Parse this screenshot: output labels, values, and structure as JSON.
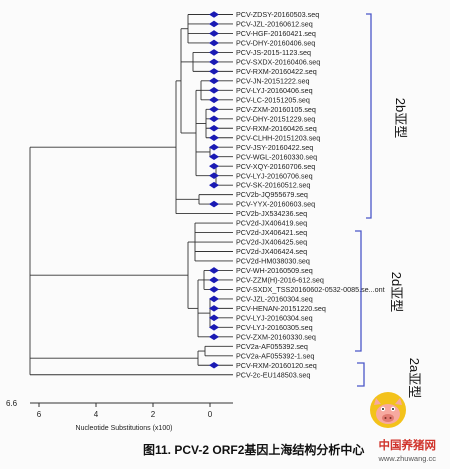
{
  "leaves": [
    "PCV-ZDSY-20160503.seq",
    "PCV-JZL-20160612.seq",
    "PCV-HGF-20160421.seq",
    "PCV-DHY-20160406.seq",
    "PCV-JS-2015-1123.seq",
    "PCV-SXDX-20160406.seq",
    "PCV-RXM-20160422.seq",
    "PCV-JN-20151222.seq",
    "PCV-LYJ-20160406.seq",
    "PCV-LC-20151205.seq",
    "PCV-ZXM-20160105.seq",
    "PCV-DHY-20151229.seq",
    "PCV-RXM-20160426.seq",
    "PCV-CLHH-20151203.seq",
    "PCV-JSY-20160422.seq",
    "PCV-WGL-20160330.seq",
    "PCV-XQY-20160706.seq",
    "PCV-LYJ-20160706.seq",
    "PCV-SK-20160512.seq",
    "PCV2b-JQ955679.seq",
    "PCV-YYX-20160603.seq",
    "PCV2b-JX534236.seq",
    "PCV2d-JX406419.seq",
    "PCV2d-JX406421.seq",
    "PCV2d-JX406425.seq",
    "PCV2d-JX406424.seq",
    "PCV2d-HM038030.seq",
    "PCV-WH-20160509.seq",
    "PCV-ZZM(H)-2016-612.seq",
    "PCV-SXDX_TSS20160602-0532-0085.se...ont",
    "PCV-JZL-20160304.seq",
    "PCV-HENAN-20151220.seq",
    "PCV-LYJ-20160304.seq",
    "PCV-LYJ-20160305.seq",
    "PCV-ZXM-20160330.seq",
    "PCV2a-AF055392.seq",
    "PCV2a-AF055392-1.seq",
    "PCV-RXM-20160120.seq",
    "PCV-2c-EU148503.seq"
  ],
  "groups": [
    {
      "label": "2b亚型"
    },
    {
      "label": "2d亚型"
    },
    {
      "label": "2a亚型"
    }
  ],
  "axis": {
    "ticks": [
      "6",
      "4",
      "2",
      "0"
    ],
    "title": "Nucleotide Substitutions (x100)",
    "max_label": "6.6"
  },
  "caption": "图11. PCV-2 ORF2基因上海结构分析中心",
  "watermark": {
    "main": "中国养猪网",
    "sub": "www.zhuwang.cc"
  },
  "colors": {
    "marker": "#1a1ab4",
    "bracket": "#4a56c8",
    "branch": "#333333"
  }
}
